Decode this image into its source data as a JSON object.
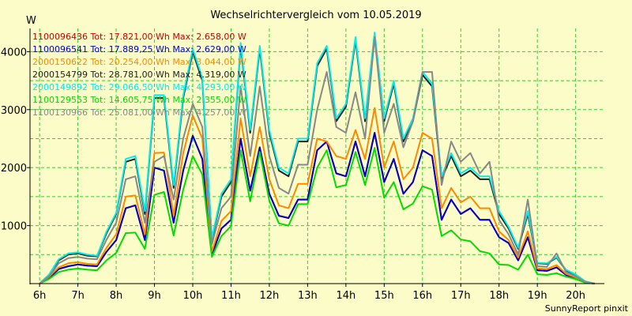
{
  "chart_data": {
    "type": "line",
    "title": "Wechselrichtervergleich vom 10.05.2019",
    "ylabel": "W",
    "xlabel": "",
    "footer": "SunnyReport pinxit",
    "background": "#fcfcc8",
    "grid_color": "#33cc33",
    "grid": true,
    "legend_placement": "top-left",
    "ylim": [
      0,
      4400
    ],
    "xlim": [
      5.75,
      20.75
    ],
    "y_ticks": [
      1000,
      2000,
      3000,
      4000
    ],
    "y_tick_labels": [
      "1000",
      "2000",
      "3000",
      "4000"
    ],
    "x_ticks": [
      6,
      7,
      8,
      9,
      10,
      11,
      12,
      13,
      14,
      15,
      16,
      17,
      18,
      19,
      20
    ],
    "x_tick_labels": [
      "6h",
      "7h",
      "8h",
      "9h",
      "10h",
      "11h",
      "12h",
      "13h",
      "14h",
      "15h",
      "16h",
      "17h",
      "18h",
      "19h",
      "20h"
    ],
    "x": [
      6.0,
      6.25,
      6.5,
      6.75,
      7.0,
      7.25,
      7.5,
      7.75,
      8.0,
      8.25,
      8.5,
      8.75,
      9.0,
      9.25,
      9.5,
      9.75,
      10.0,
      10.25,
      10.5,
      10.75,
      11.0,
      11.25,
      11.5,
      11.75,
      12.0,
      12.25,
      12.5,
      12.75,
      13.0,
      13.25,
      13.5,
      13.75,
      14.0,
      14.25,
      14.5,
      14.75,
      15.0,
      15.25,
      15.5,
      15.75,
      16.0,
      16.25,
      16.5,
      16.75,
      17.0,
      17.25,
      17.5,
      17.75,
      18.0,
      18.25,
      18.5,
      18.75,
      19.0,
      19.25,
      19.5,
      19.75,
      20.0,
      20.25,
      20.5
    ],
    "series": [
      {
        "name": "1100096436",
        "legend": "1100096436 Tot: 17.821,00 Wh Max: 2.658,00 W",
        "color": "#cc0000",
        "values": [
          0,
          100,
          250,
          300,
          330,
          310,
          300,
          550,
          750,
          1300,
          1350,
          750,
          2000,
          1950,
          1050,
          1950,
          2550,
          2150,
          500,
          950,
          1100,
          2500,
          1600,
          2350,
          1550,
          1170,
          1130,
          1450,
          1450,
          2300,
          2450,
          1900,
          1850,
          2450,
          1850,
          2600,
          1750,
          2150,
          1550,
          1750,
          2300,
          2200,
          1100,
          1450,
          1200,
          1300,
          1100,
          1100,
          800,
          700,
          400,
          800,
          230,
          220,
          280,
          150,
          100,
          20,
          0
        ]
      },
      {
        "name": "1100096541",
        "legend": "1100096541 Tot: 17.889,25 Wh Max: 2.629,00 W",
        "color": "#0000cc",
        "values": [
          0,
          100,
          250,
          300,
          330,
          310,
          300,
          550,
          750,
          1300,
          1350,
          750,
          2000,
          1950,
          1050,
          1950,
          2550,
          2150,
          500,
          950,
          1100,
          2500,
          1600,
          2350,
          1550,
          1170,
          1130,
          1450,
          1450,
          2300,
          2450,
          1900,
          1850,
          2450,
          1850,
          2600,
          1750,
          2150,
          1550,
          1750,
          2300,
          2200,
          1100,
          1450,
          1200,
          1300,
          1100,
          1100,
          800,
          700,
          400,
          800,
          230,
          220,
          280,
          150,
          100,
          20,
          0
        ]
      },
      {
        "name": "2000150622",
        "legend": "2000150622 Tot: 20.254,00 Wh Max: 3.044,00 W",
        "color": "#ff8800",
        "values": [
          0,
          120,
          280,
          350,
          370,
          340,
          330,
          620,
          850,
          1500,
          1520,
          850,
          2250,
          2260,
          1170,
          2250,
          2900,
          2500,
          550,
          1080,
          1250,
          2850,
          1850,
          2700,
          1800,
          1350,
          1300,
          1720,
          1720,
          2500,
          2450,
          2200,
          2150,
          2650,
          2150,
          3030,
          2000,
          2450,
          1800,
          2000,
          2600,
          2500,
          1300,
          1650,
          1400,
          1500,
          1300,
          1300,
          900,
          750,
          450,
          900,
          260,
          250,
          320,
          170,
          110,
          25,
          0
        ]
      },
      {
        "name": "2000154799",
        "legend": "2000154799 Tot: 28.781,00 Wh Max: 4.319,00 W",
        "color": "#222222",
        "values": [
          0,
          150,
          400,
          500,
          520,
          480,
          470,
          870,
          1200,
          2100,
          2150,
          1200,
          3200,
          3200,
          1650,
          3200,
          4000,
          3500,
          760,
          1500,
          1750,
          4100,
          2600,
          4050,
          2600,
          1950,
          1850,
          2450,
          2450,
          3750,
          4050,
          2800,
          3050,
          4200,
          2800,
          4300,
          2800,
          3450,
          2450,
          2800,
          3600,
          3400,
          1800,
          2200,
          1850,
          1950,
          1800,
          1800,
          1200,
          950,
          600,
          1200,
          350,
          340,
          450,
          230,
          150,
          35,
          0
        ]
      },
      {
        "name": "2000149892",
        "legend": "2000149892 Tot: 29.066,50 Wh Max: 4.293,00 W",
        "color": "#00eeee",
        "values": [
          0,
          160,
          420,
          520,
          540,
          500,
          480,
          900,
          1220,
          2150,
          2200,
          1250,
          3250,
          3250,
          1700,
          3250,
          4050,
          3550,
          780,
          1550,
          1800,
          4150,
          2650,
          4100,
          2650,
          2000,
          1900,
          2500,
          2500,
          3800,
          4100,
          2850,
          3100,
          4250,
          2850,
          4330,
          2850,
          3500,
          2500,
          2850,
          3650,
          3450,
          1850,
          2250,
          1900,
          2000,
          1850,
          1850,
          1250,
          980,
          620,
          1250,
          360,
          350,
          460,
          240,
          160,
          40,
          0
        ]
      },
      {
        "name": "1100129553",
        "legend": "1100129553 Tot: 14.605,75 Wh Max: 2.355,00 W",
        "color": "#00dd00",
        "values": [
          0,
          80,
          200,
          240,
          260,
          240,
          230,
          400,
          530,
          870,
          880,
          600,
          1530,
          1580,
          830,
          1620,
          2200,
          1880,
          460,
          820,
          990,
          2300,
          1420,
          2270,
          1430,
          1040,
          1000,
          1370,
          1370,
          2000,
          2300,
          1660,
          1700,
          2270,
          1700,
          2340,
          1480,
          1750,
          1280,
          1380,
          1680,
          1620,
          820,
          920,
          760,
          730,
          560,
          520,
          330,
          320,
          240,
          500,
          160,
          150,
          180,
          120,
          80,
          15,
          0
        ]
      },
      {
        "name": "1100130966",
        "legend": "1100130966 Tot: 25.081,00 Wh Max: 4.257,00 W",
        "color": "#888888",
        "values": [
          0,
          130,
          350,
          440,
          460,
          430,
          420,
          760,
          1050,
          1800,
          1850,
          1050,
          2100,
          2200,
          1450,
          2500,
          3100,
          2700,
          680,
          1300,
          1500,
          3400,
          2200,
          3400,
          2200,
          1650,
          1550,
          2050,
          2050,
          3000,
          3650,
          2700,
          2600,
          3300,
          2500,
          4250,
          2600,
          3100,
          2350,
          2800,
          3650,
          3650,
          1700,
          2450,
          2100,
          2250,
          1900,
          2100,
          1100,
          850,
          500,
          1450,
          300,
          290,
          520,
          200,
          130,
          30,
          0
        ]
      }
    ]
  }
}
